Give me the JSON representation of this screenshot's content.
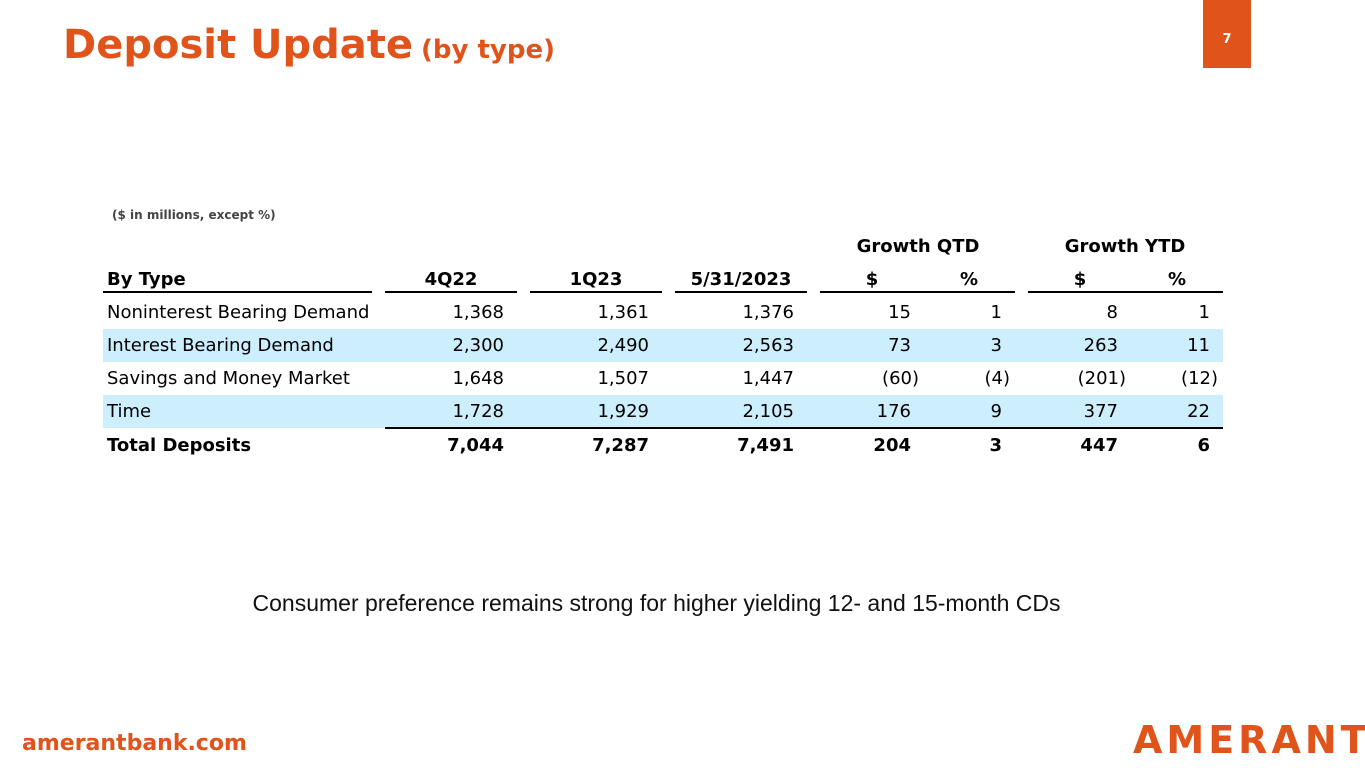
{
  "header": {
    "title": "Deposit Update",
    "subtitle": "(by type)",
    "page_number": "7"
  },
  "table": {
    "note": "($ in millions, except %)",
    "group_headers": [
      "Growth QTD",
      "Growth YTD"
    ],
    "columns": [
      "By Type",
      "4Q22",
      "1Q23",
      "5/31/2023",
      "$",
      "%",
      "$",
      "%"
    ],
    "rows": [
      [
        "Noninterest Bearing Demand",
        "1,368",
        "1,361",
        "1,376",
        "15",
        "1",
        "8",
        "1"
      ],
      [
        "Interest Bearing Demand",
        "2,300",
        "2,490",
        "2,563",
        "73",
        "3",
        "263",
        "11"
      ],
      [
        "Savings and Money Market",
        "1,648",
        "1,507",
        "1,447",
        "(60)",
        "(4)",
        "(201)",
        "(12)"
      ],
      [
        "Time",
        "1,728",
        "1,929",
        "2,105",
        "176",
        "9",
        "377",
        "22"
      ]
    ],
    "total": [
      "Total Deposits",
      "7,044",
      "7,287",
      "7,491",
      "204",
      "3",
      "447",
      "6"
    ]
  },
  "caption": "Consumer preference remains strong for higher yielding 12- and 15-month CDs",
  "footer": {
    "website": "amerantbank.com",
    "logo": "AMERANT"
  }
}
